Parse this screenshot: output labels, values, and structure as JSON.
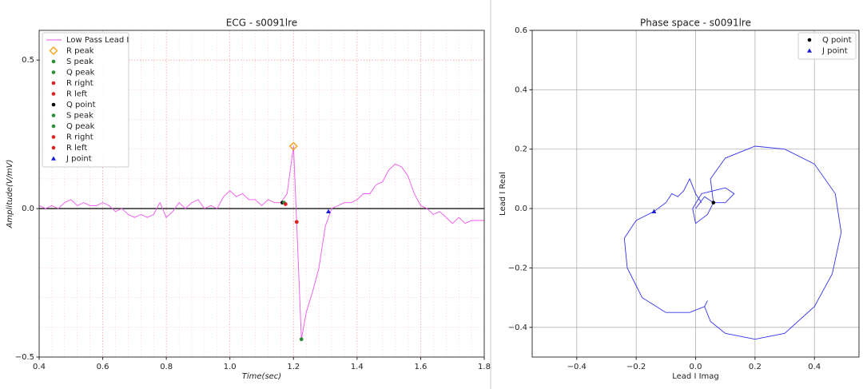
{
  "chart_data": [
    {
      "type": "line",
      "title": "ECG - s0091lre",
      "xlabel": "Time(sec)",
      "ylabel": "Amplitude(V/mV)",
      "xlim": [
        0.4,
        1.8
      ],
      "ylim": [
        -0.5,
        0.6
      ],
      "xticks": [
        0.4,
        0.6,
        0.8,
        {
          "value": 1.0,
          "label": "1.0"
        },
        1.2,
        1.4,
        1.6,
        1.8
      ],
      "yticks": [
        {
          "value": -0.5,
          "label": "−0.5"
        },
        {
          "value": 0,
          "label": "0.0"
        },
        0.5
      ],
      "grid": true,
      "minor_grid": true,
      "grid_color": "#f4a0a0",
      "grid_style": "dotted",
      "hline": 0,
      "legend": "upper left",
      "series": [
        {
          "name": "Low Pass Lead I",
          "color": "#ee55ee",
          "x": [
            0.4,
            0.42,
            0.44,
            0.46,
            0.48,
            0.5,
            0.52,
            0.54,
            0.56,
            0.58,
            0.6,
            0.62,
            0.64,
            0.66,
            0.68,
            0.7,
            0.72,
            0.74,
            0.76,
            0.78,
            0.8,
            0.82,
            0.84,
            0.86,
            0.88,
            0.9,
            0.92,
            0.94,
            0.96,
            0.98,
            1.0,
            1.02,
            1.04,
            1.06,
            1.08,
            1.1,
            1.12,
            1.14,
            1.16,
            1.18,
            1.2,
            1.21,
            1.225,
            1.24,
            1.26,
            1.28,
            1.3,
            1.32,
            1.34,
            1.36,
            1.38,
            1.4,
            1.42,
            1.44,
            1.46,
            1.48,
            1.5,
            1.52,
            1.54,
            1.56,
            1.58,
            1.6,
            1.62,
            1.64,
            1.66,
            1.68,
            1.7,
            1.72,
            1.74,
            1.76,
            1.78,
            1.8
          ],
          "values": [
            0.01,
            0.0,
            0.01,
            0.0,
            0.02,
            0.03,
            0.01,
            0.02,
            0.01,
            0.01,
            0.02,
            0.01,
            -0.01,
            0.0,
            -0.02,
            -0.03,
            -0.02,
            -0.03,
            -0.02,
            0.02,
            -0.03,
            -0.01,
            0.02,
            0.0,
            0.02,
            0.03,
            0.0,
            0.01,
            0.0,
            0.04,
            0.06,
            0.04,
            0.05,
            0.03,
            0.03,
            0.01,
            0.03,
            0.02,
            0.02,
            0.05,
            0.21,
            -0.05,
            -0.44,
            -0.35,
            -0.28,
            -0.2,
            -0.06,
            0.0,
            0.01,
            0.02,
            0.02,
            0.03,
            0.05,
            0.05,
            0.08,
            0.09,
            0.13,
            0.15,
            0.14,
            0.11,
            0.05,
            0.01,
            0.0,
            -0.02,
            -0.01,
            -0.03,
            -0.05,
            -0.03,
            -0.05,
            -0.04,
            -0.04,
            -0.04
          ]
        },
        {
          "name": "R peak",
          "color": "#f5a623",
          "marker": "D",
          "x": [
            1.2
          ],
          "values": [
            0.21
          ]
        },
        {
          "name": "S peak",
          "color": "#2e8b3a",
          "marker": "o",
          "x": [
            1.225
          ],
          "values": [
            -0.44
          ]
        },
        {
          "name": "Q peak",
          "color": "#2e8b3a",
          "marker": "o",
          "x": [
            1.17
          ],
          "values": [
            0.02
          ]
        },
        {
          "name": "R right",
          "color": "#e02020",
          "marker": "o",
          "x": [
            1.21
          ],
          "values": [
            -0.045
          ]
        },
        {
          "name": "R left",
          "color": "#e02020",
          "marker": "o",
          "x": [
            1.175
          ],
          "values": [
            0.015
          ]
        },
        {
          "name": "Q point",
          "color": "#000000",
          "marker": "o",
          "x": [
            1.165
          ],
          "values": [
            0.02
          ]
        },
        {
          "name": "S peak",
          "color": "#2e8b3a",
          "marker": "o",
          "x": [
            1.225
          ],
          "values": [
            -0.44
          ]
        },
        {
          "name": "Q peak",
          "color": "#2e8b3a",
          "marker": "o",
          "x": [
            1.17
          ],
          "values": [
            0.02
          ]
        },
        {
          "name": "R right",
          "color": "#e02020",
          "marker": "o",
          "x": [
            1.21
          ],
          "values": [
            -0.045
          ]
        },
        {
          "name": "R left",
          "color": "#e02020",
          "marker": "o",
          "x": [
            1.175
          ],
          "values": [
            0.015
          ]
        },
        {
          "name": "J point",
          "color": "#1a1adb",
          "marker": "^",
          "x": [
            1.31
          ],
          "values": [
            -0.01
          ]
        }
      ]
    },
    {
      "type": "line",
      "title": "Phase space - s0091lre",
      "xlabel": "Lead I Imag",
      "ylabel": "Lead I Real",
      "xlim": [
        -0.55,
        0.55
      ],
      "ylim": [
        -0.5,
        0.6
      ],
      "xticks": [
        {
          "value": -0.4,
          "label": "−0.4"
        },
        {
          "value": -0.2,
          "label": "−0.2"
        },
        {
          "value": 0,
          "label": "0.0"
        },
        0.2,
        0.4
      ],
      "yticks": [
        {
          "value": -0.4,
          "label": "−0.4"
        },
        {
          "value": -0.2,
          "label": "−0.2"
        },
        {
          "value": 0,
          "label": "0.0"
        },
        0.2,
        0.4,
        0.6
      ],
      "grid": true,
      "minor_grid": false,
      "grid_color": "#b0b0b0",
      "grid_style": "solid",
      "legend": "upper right",
      "series": [
        {
          "color": "#3333ee",
          "x": [
            0.0,
            0.03,
            0.06,
            0.04,
            0.0,
            -0.01,
            0.02,
            0.1,
            0.13,
            0.1,
            0.06,
            0.05,
            0.1,
            0.2,
            0.3,
            0.4,
            0.47,
            0.49,
            0.46,
            0.4,
            0.3,
            0.2,
            0.1,
            0.05,
            0.03,
            0.04,
            0.03,
            -0.02,
            -0.1,
            -0.18,
            -0.23,
            -0.24,
            -0.2,
            -0.14,
            -0.1,
            -0.08,
            -0.06,
            -0.04,
            -0.02,
            0.0,
            0.02
          ],
          "values": [
            0.0,
            0.04,
            0.02,
            -0.02,
            -0.05,
            0.0,
            0.05,
            0.07,
            0.05,
            0.02,
            0.02,
            0.1,
            0.17,
            0.21,
            0.2,
            0.15,
            0.05,
            -0.08,
            -0.22,
            -0.33,
            -0.42,
            -0.44,
            -0.42,
            -0.38,
            -0.33,
            -0.31,
            -0.33,
            -0.35,
            -0.35,
            -0.3,
            -0.2,
            -0.1,
            -0.04,
            -0.01,
            0.02,
            0.05,
            0.04,
            0.06,
            0.1,
            0.05,
            0.02
          ]
        },
        {
          "name": "Q point",
          "color": "#000000",
          "marker": "o",
          "x": [
            0.06
          ],
          "values": [
            0.02
          ]
        },
        {
          "name": "J point",
          "color": "#1a1adb",
          "marker": "^",
          "x": [
            -0.14
          ],
          "values": [
            -0.01
          ]
        }
      ]
    }
  ]
}
